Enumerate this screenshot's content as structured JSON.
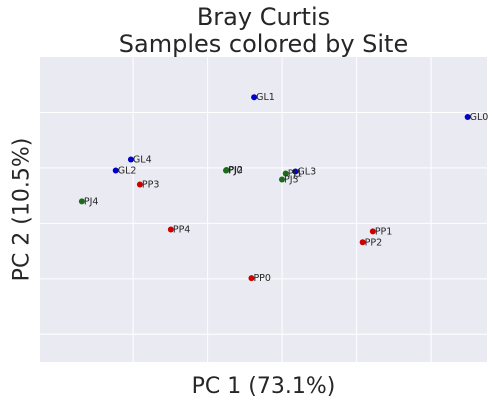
{
  "chart_data": {
    "type": "scatter",
    "title": [
      "Bray Curtis",
      "Samples colored by Site"
    ],
    "xlabel": "PC 1 (73.1%)",
    "ylabel": "PC 2 (10.5%)",
    "xlim": [
      -0.65,
      0.55
    ],
    "ylim": [
      -0.5,
      0.6
    ],
    "grid": true,
    "legend": "none",
    "x_ticks": [
      -0.4,
      -0.2,
      0.0,
      0.2,
      0.4
    ],
    "y_ticks": [
      -0.4,
      -0.2,
      0.0,
      0.2,
      0.4
    ],
    "series": [
      {
        "color": "#0000cc",
        "points": [
          {
            "label": "GL0",
            "x": 0.4981,
            "y": 0.3837
          },
          {
            "label": "GL1",
            "x": -0.0752,
            "y": 0.4549
          },
          {
            "label": "GL2",
            "x": -0.4467,
            "y": 0.1906
          },
          {
            "label": "GL3",
            "x": 0.0357,
            "y": 0.1871
          },
          {
            "label": "GL4",
            "x": -0.4059,
            "y": 0.2302
          }
        ]
      },
      {
        "color": "#cc0000",
        "points": [
          {
            "label": "PP0",
            "x": -0.0823,
            "y": -0.1977
          },
          {
            "label": "PP1",
            "x": 0.2435,
            "y": -0.0288
          },
          {
            "label": "PP2",
            "x": 0.2162,
            "y": -0.0683
          },
          {
            "label": "PP3",
            "x": -0.3818,
            "y": 0.1403
          },
          {
            "label": "PP4",
            "x": -0.2987,
            "y": -0.0223
          }
        ]
      },
      {
        "color": "#1a6b1a",
        "points": [
          {
            "label": "PJ0",
            "x": -0.1507,
            "y": 0.1906
          },
          {
            "label": "PJ1",
            "x": 0.0096,
            "y": 0.1798
          },
          {
            "label": "PJ2",
            "x": -0.1494,
            "y": 0.1924
          },
          {
            "label": "PJ3",
            "x": -0.0003,
            "y": 0.1583
          },
          {
            "label": "PJ4",
            "x": -0.5376,
            "y": 0.0793
          }
        ]
      }
    ]
  }
}
